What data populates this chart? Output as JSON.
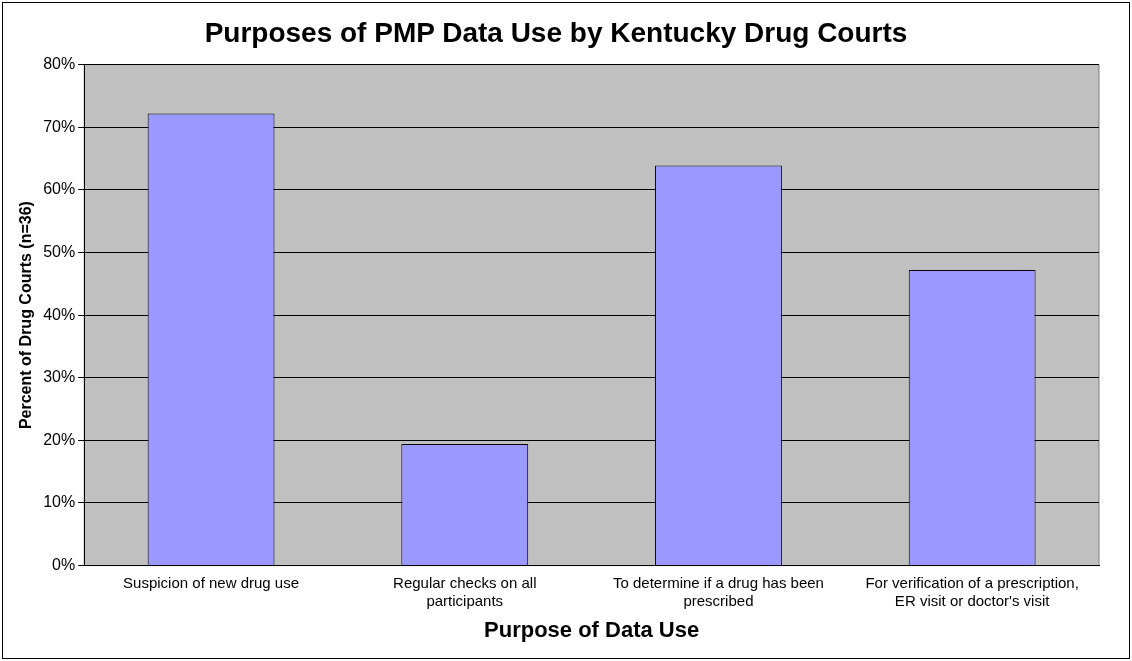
{
  "chart_data": {
    "type": "bar",
    "title": "Purposes of PMP Data Use by Kentucky Drug Courts",
    "xlabel": "Purpose of Data Use",
    "ylabel": "Percent of Drug Courts (n=36)",
    "categories": [
      "Suspicion of new drug use",
      "Regular checks on all participants",
      "To determine if a drug has been prescribed",
      "For verification of a prescription, ER visit or doctor's visit"
    ],
    "values": [
      72.2,
      19.4,
      63.9,
      47.2
    ],
    "color": "#9999ff",
    "ylim": [
      0,
      80
    ],
    "yticks": [
      {
        "value": 0,
        "label": "0%"
      },
      {
        "value": 10,
        "label": "10%"
      },
      {
        "value": 20,
        "label": "20%"
      },
      {
        "value": 30,
        "label": "30%"
      },
      {
        "value": 40,
        "label": "40%"
      },
      {
        "value": 50,
        "label": "50%"
      },
      {
        "value": 60,
        "label": "60%"
      },
      {
        "value": 70,
        "label": "70%"
      },
      {
        "value": 80,
        "label": "80%"
      }
    ],
    "grid": "y",
    "legend": false
  }
}
